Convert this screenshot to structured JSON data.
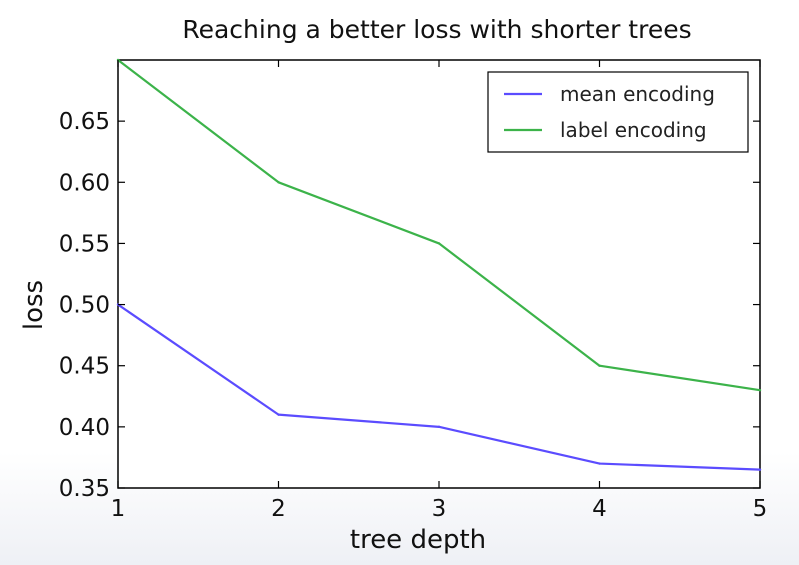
{
  "chart_data": {
    "type": "line",
    "title": "Reaching a better loss with shorter trees",
    "xlabel": "tree depth",
    "ylabel": "loss",
    "x": [
      1,
      2,
      3,
      4,
      5
    ],
    "xlim": [
      1,
      5
    ],
    "ylim": [
      0.35,
      0.7
    ],
    "xticks": [
      "1",
      "2",
      "3",
      "4",
      "5"
    ],
    "yticks": [
      "0.35",
      "0.40",
      "0.45",
      "0.50",
      "0.55",
      "0.60",
      "0.65"
    ],
    "grid": false,
    "legend_position": "top-right",
    "series": [
      {
        "name": "mean encoding",
        "color": "#5b4cff",
        "values": [
          0.5,
          0.41,
          0.4,
          0.37,
          0.365
        ]
      },
      {
        "name": "label encoding",
        "color": "#3cb34a",
        "values": [
          0.7,
          0.6,
          0.55,
          0.45,
          0.43
        ]
      }
    ]
  }
}
